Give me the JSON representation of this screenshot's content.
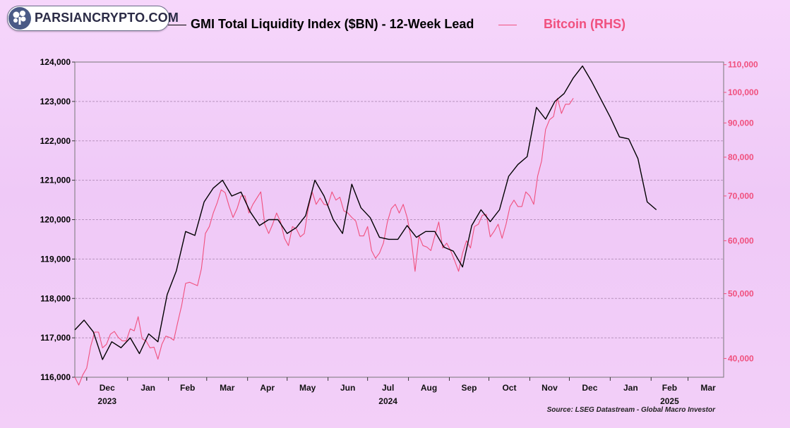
{
  "logo": {
    "text": "PARSIANCRYPTO.COM",
    "icon": "tree-logo-icon"
  },
  "source": "Source: LSEG Datastream - Global Macro Investor",
  "chart_data": {
    "type": "line",
    "title": "",
    "xlabel": "",
    "x_tick_labels": [
      "Dec",
      "Jan",
      "Feb",
      "Mar",
      "Apr",
      "May",
      "Jun",
      "Jul",
      "Aug",
      "Sep",
      "Oct",
      "Nov",
      "Dec",
      "Jan",
      "Feb",
      "Mar"
    ],
    "x_year_labels": [
      {
        "label": "2023",
        "under": "Dec"
      },
      {
        "label": "2024",
        "under": "Jul"
      },
      {
        "label": "2025",
        "under": "Feb"
      }
    ],
    "x_range": [
      "2023-11-22",
      "2025-03-28"
    ],
    "left_axis": {
      "ylim": [
        116000,
        124000
      ],
      "ticks": [
        116000,
        117000,
        118000,
        119000,
        120000,
        121000,
        122000,
        123000,
        124000
      ],
      "tick_labels": [
        "116,000",
        "117,000",
        "118,000",
        "119,000",
        "120,000",
        "121,000",
        "122,000",
        "123,000",
        "124,000"
      ],
      "color": "#000000"
    },
    "right_axis": {
      "scale": "log",
      "ylim": [
        37500,
        111000
      ],
      "ticks": [
        40000,
        50000,
        60000,
        70000,
        80000,
        90000,
        100000,
        110000
      ],
      "tick_labels": [
        "40,000",
        "50,000",
        "60,000",
        "70,000",
        "80,000",
        "90,000",
        "100,000",
        "110,000"
      ],
      "color": "#f0507e"
    },
    "grid": true,
    "legend_position": "top",
    "series": [
      {
        "name": "GMI Total Liquidity Index ($BN) - 12-Week Lead",
        "axis": "left",
        "color": "#000000",
        "x": [
          "2023-11-22",
          "2023-11-29",
          "2023-12-06",
          "2023-12-13",
          "2023-12-20",
          "2023-12-27",
          "2024-01-03",
          "2024-01-10",
          "2024-01-17",
          "2024-01-24",
          "2024-01-31",
          "2024-02-07",
          "2024-02-14",
          "2024-02-21",
          "2024-02-28",
          "2024-03-06",
          "2024-03-13",
          "2024-03-20",
          "2024-03-27",
          "2024-04-03",
          "2024-04-10",
          "2024-04-17",
          "2024-04-24",
          "2024-05-01",
          "2024-05-08",
          "2024-05-15",
          "2024-05-22",
          "2024-05-29",
          "2024-06-05",
          "2024-06-12",
          "2024-06-19",
          "2024-06-26",
          "2024-07-03",
          "2024-07-10",
          "2024-07-17",
          "2024-07-24",
          "2024-07-31",
          "2024-08-07",
          "2024-08-14",
          "2024-08-21",
          "2024-08-28",
          "2024-09-04",
          "2024-09-11",
          "2024-09-18",
          "2024-09-25",
          "2024-10-02",
          "2024-10-09",
          "2024-10-16",
          "2024-10-23",
          "2024-10-30",
          "2024-11-06",
          "2024-11-13",
          "2024-11-20",
          "2024-11-27",
          "2024-12-04",
          "2024-12-11",
          "2024-12-18",
          "2024-12-25",
          "2025-01-01",
          "2025-01-08",
          "2025-01-15",
          "2025-01-22",
          "2025-01-29",
          "2025-02-05"
        ],
        "values": [
          117200,
          117450,
          117150,
          116450,
          116900,
          116750,
          117000,
          116600,
          117100,
          116900,
          118100,
          118700,
          119700,
          119600,
          120450,
          120800,
          121000,
          120600,
          120700,
          120200,
          119850,
          120000,
          120000,
          119650,
          119800,
          120100,
          121000,
          120600,
          120000,
          119650,
          120900,
          120300,
          120050,
          119550,
          119500,
          119500,
          119850,
          119550,
          119700,
          119700,
          119300,
          119200,
          118800,
          119850,
          120250,
          119950,
          120250,
          121100,
          121400,
          121600,
          122850,
          122550,
          123000,
          123200,
          123600,
          123900,
          123500,
          123050,
          122600,
          122100,
          122050,
          121550,
          120450,
          120250
        ]
      },
      {
        "name": "Bitcoin (RHS)",
        "axis": "right",
        "color": "#f0507e",
        "x": [
          "2023-11-22",
          "2023-11-25",
          "2023-11-28",
          "2023-12-01",
          "2023-12-04",
          "2023-12-07",
          "2023-12-10",
          "2023-12-13",
          "2023-12-16",
          "2023-12-19",
          "2023-12-22",
          "2023-12-25",
          "2023-12-28",
          "2023-12-31",
          "2024-01-03",
          "2024-01-06",
          "2024-01-09",
          "2024-01-12",
          "2024-01-15",
          "2024-01-18",
          "2024-01-21",
          "2024-01-24",
          "2024-01-27",
          "2024-01-30",
          "2024-02-02",
          "2024-02-05",
          "2024-02-08",
          "2024-02-11",
          "2024-02-14",
          "2024-02-17",
          "2024-02-20",
          "2024-02-23",
          "2024-02-26",
          "2024-02-29",
          "2024-03-03",
          "2024-03-06",
          "2024-03-09",
          "2024-03-12",
          "2024-03-15",
          "2024-03-18",
          "2024-03-21",
          "2024-03-24",
          "2024-03-27",
          "2024-03-30",
          "2024-04-02",
          "2024-04-05",
          "2024-04-08",
          "2024-04-11",
          "2024-04-14",
          "2024-04-17",
          "2024-04-20",
          "2024-04-23",
          "2024-04-26",
          "2024-04-29",
          "2024-05-02",
          "2024-05-05",
          "2024-05-08",
          "2024-05-11",
          "2024-05-14",
          "2024-05-17",
          "2024-05-20",
          "2024-05-23",
          "2024-05-26",
          "2024-05-29",
          "2024-06-01",
          "2024-06-04",
          "2024-06-07",
          "2024-06-10",
          "2024-06-13",
          "2024-06-16",
          "2024-06-19",
          "2024-06-22",
          "2024-06-25",
          "2024-06-28",
          "2024-07-01",
          "2024-07-04",
          "2024-07-07",
          "2024-07-10",
          "2024-07-13",
          "2024-07-16",
          "2024-07-19",
          "2024-07-22",
          "2024-07-25",
          "2024-07-28",
          "2024-07-31",
          "2024-08-03",
          "2024-08-06",
          "2024-08-09",
          "2024-08-12",
          "2024-08-15",
          "2024-08-18",
          "2024-08-21",
          "2024-08-24",
          "2024-08-27",
          "2024-08-30",
          "2024-09-02",
          "2024-09-05",
          "2024-09-08",
          "2024-09-11",
          "2024-09-14",
          "2024-09-17",
          "2024-09-20",
          "2024-09-23",
          "2024-09-26",
          "2024-09-29",
          "2024-10-02",
          "2024-10-05",
          "2024-10-08",
          "2024-10-11",
          "2024-10-14",
          "2024-10-17",
          "2024-10-20",
          "2024-10-23",
          "2024-10-26",
          "2024-10-29",
          "2024-11-01",
          "2024-11-04",
          "2024-11-07",
          "2024-11-10",
          "2024-11-13",
          "2024-11-16",
          "2024-11-19",
          "2024-11-22",
          "2024-11-25",
          "2024-11-28",
          "2024-12-01",
          "2024-12-04"
        ],
        "values": [
          37500,
          36500,
          37800,
          38700,
          41700,
          43800,
          43800,
          41500,
          42000,
          43500,
          43900,
          43000,
          42500,
          42500,
          44300,
          44000,
          46200,
          42800,
          42500,
          41500,
          41600,
          39900,
          42000,
          43200,
          43000,
          42600,
          45300,
          48000,
          51800,
          52000,
          51700,
          51400,
          54500,
          61500,
          63000,
          66000,
          68400,
          71500,
          70800,
          67600,
          65000,
          67000,
          70000,
          70000,
          66000,
          68000,
          69500,
          71000,
          63500,
          61500,
          63500,
          66000,
          64000,
          60500,
          59000,
          63000,
          62500,
          60800,
          61500,
          67000,
          71000,
          68000,
          69500,
          68000,
          67800,
          71000,
          69000,
          69700,
          66500,
          66000,
          65000,
          64200,
          61000,
          61000,
          63000,
          58000,
          56500,
          57500,
          59500,
          64000,
          67000,
          68000,
          66000,
          68000,
          65000,
          60500,
          54000,
          61000,
          59000,
          58700,
          58000,
          61000,
          64000,
          58500,
          59500,
          58000,
          56000,
          54000,
          57500,
          60000,
          58500,
          63000,
          63500,
          65500,
          65700,
          60800,
          62000,
          63500,
          60500,
          63500,
          67500,
          69000,
          67500,
          67500,
          71000,
          70000,
          68000,
          75000,
          79000,
          88000,
          91000,
          92000,
          98000,
          93000,
          96000,
          96000,
          98000
        ]
      }
    ]
  },
  "legend": [
    {
      "label": "GMI Total Liquidity Index ($BN) - 12-Week Lead",
      "color": "#000000"
    },
    {
      "label": "Bitcoin (RHS)",
      "color": "#f0507e"
    }
  ]
}
